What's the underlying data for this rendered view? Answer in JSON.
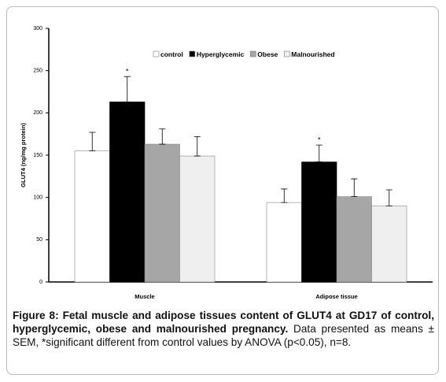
{
  "chart_data": {
    "type": "bar",
    "y_label": "GLUT4 (ng/mg protein)",
    "categories": [
      "Muscle",
      "Adipose tissue"
    ],
    "series": [
      {
        "name": "control",
        "color": "#ffffff",
        "values": [
          155,
          94
        ],
        "errors": [
          22,
          16
        ]
      },
      {
        "name": "Hyperglycemic",
        "color": "#000000",
        "values": [
          213,
          142
        ],
        "errors": [
          30,
          20
        ],
        "markers": [
          "*",
          "*"
        ]
      },
      {
        "name": "Obese",
        "color": "#a6a6a6",
        "values": [
          163,
          101
        ],
        "errors": [
          18,
          21
        ]
      },
      {
        "name": "Malnourished",
        "color": "#efefef",
        "values": [
          149,
          90
        ],
        "errors": [
          23,
          19
        ]
      }
    ],
    "ylim": [
      0,
      300
    ],
    "yticks": [
      0,
      50,
      100,
      150,
      200,
      250,
      300
    ],
    "grid": false,
    "legend": "top"
  },
  "caption": {
    "bold": "Figure 8: Fetal muscle and adipose tissues content of GLUT4 at GD17 of control, hyperglycemic, obese and malnourished pregnancy.",
    "text": "Data presented as means ± SEM, *significant different from control values by ANOVA (p<0.05), n=8."
  }
}
